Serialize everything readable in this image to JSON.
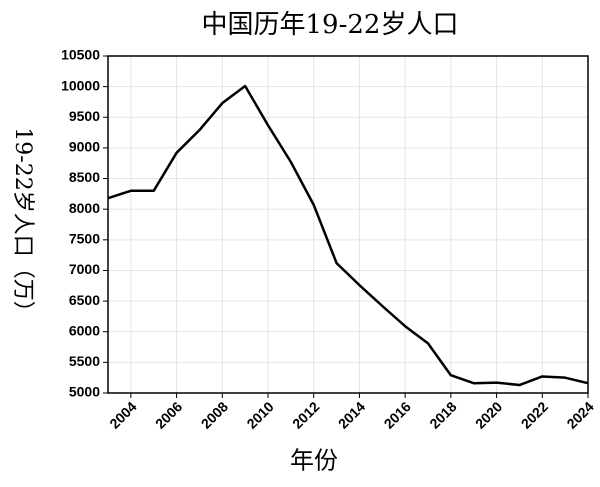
{
  "chart_data": {
    "type": "line",
    "title": "中国历年19-22岁人口",
    "x_label": "年份",
    "y_label": "19-22岁人口（万）",
    "x": [
      2003,
      2004,
      2005,
      2006,
      2007,
      2008,
      2009,
      2010,
      2011,
      2012,
      2013,
      2014,
      2015,
      2016,
      2017,
      2018,
      2019,
      2020,
      2021,
      2022,
      2023,
      2024
    ],
    "series": [
      {
        "name": "19-22岁人口",
        "color": "#000000",
        "values": [
          8180,
          8300,
          8300,
          8920,
          9290,
          9730,
          10010,
          9370,
          8770,
          8070,
          7120,
          6760,
          6420,
          6090,
          5810,
          5290,
          5160,
          5170,
          5130,
          5270,
          5250,
          5160
        ]
      }
    ],
    "xlim": [
      2003,
      2024
    ],
    "xticks": [
      2004,
      2006,
      2008,
      2010,
      2012,
      2014,
      2016,
      2018,
      2020,
      2022,
      2024
    ],
    "ylim": [
      5000,
      10500
    ],
    "yticks": [
      5000,
      5500,
      6000,
      6500,
      7000,
      7500,
      8000,
      8500,
      9000,
      9500,
      10000,
      10500
    ],
    "grid": true
  }
}
